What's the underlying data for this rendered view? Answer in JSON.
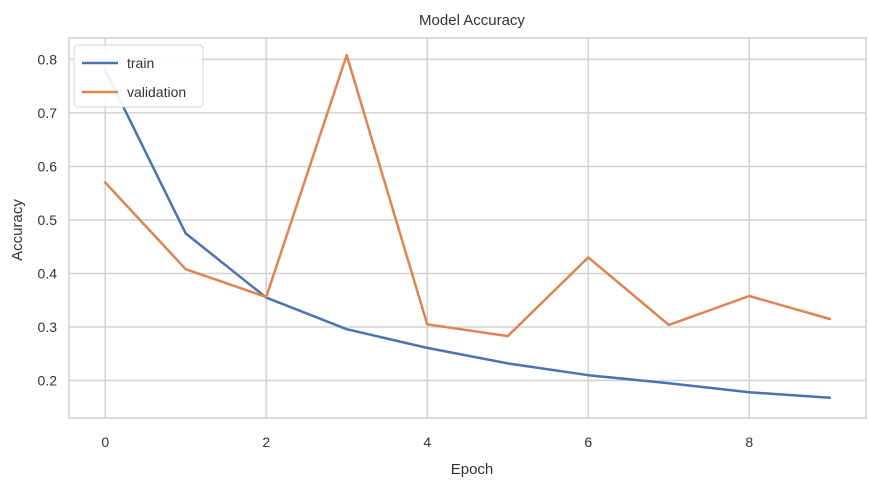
{
  "chart_data": {
    "type": "line",
    "title": "Model Accuracy",
    "xlabel": "Epoch",
    "ylabel": "Accuracy",
    "x": [
      0,
      1,
      2,
      3,
      4,
      5,
      6,
      7,
      8,
      9
    ],
    "xlim": [
      -0.45,
      9.45
    ],
    "ylim": [
      0.13,
      0.84
    ],
    "xticks": [
      0,
      2,
      4,
      6,
      8
    ],
    "yticks": [
      0.2,
      0.3,
      0.4,
      0.5,
      0.6,
      0.7,
      0.8
    ],
    "xtick_labels": [
      "0",
      "2",
      "4",
      "6",
      "8"
    ],
    "ytick_labels": [
      "0.2",
      "0.3",
      "0.4",
      "0.5",
      "0.6",
      "0.7",
      "0.8"
    ],
    "grid": true,
    "legend_position": "top-left",
    "series": [
      {
        "name": "train",
        "color": "#4c72b0",
        "values": [
          0.78,
          0.475,
          0.355,
          0.296,
          0.261,
          0.232,
          0.21,
          0.195,
          0.178,
          0.168
        ]
      },
      {
        "name": "validation",
        "color": "#dd8452",
        "values": [
          0.57,
          0.408,
          0.356,
          0.808,
          0.305,
          0.283,
          0.43,
          0.304,
          0.358,
          0.315
        ]
      }
    ]
  }
}
